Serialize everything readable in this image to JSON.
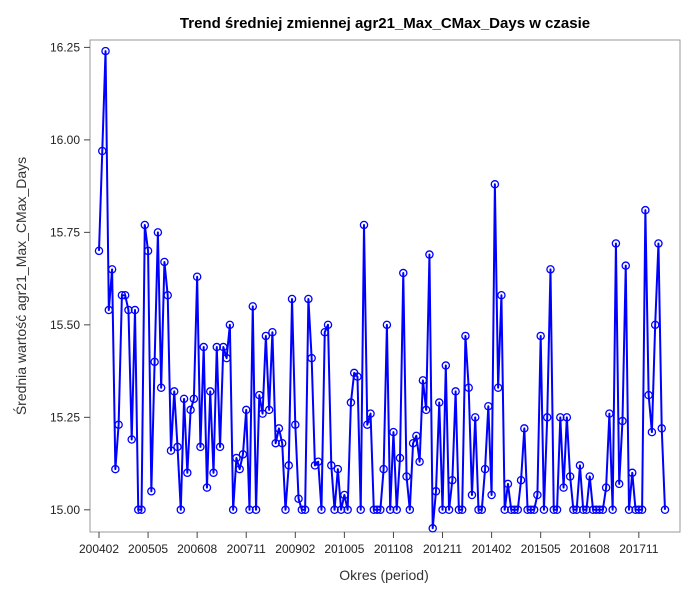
{
  "chart_data": {
    "type": "line",
    "title": "Trend średniej zmiennej agr21_Max_CMax_Days w czasie",
    "xlabel": "Okres (period)",
    "ylabel": "Średnia wartość agr21_Max_CMax_Days",
    "ylim": [
      14.94,
      16.27
    ],
    "y_ticks": [
      "15.00",
      "15.25",
      "15.50",
      "15.75",
      "16.00",
      "16.25"
    ],
    "x_ticks": [
      "200402",
      "200505",
      "200608",
      "200711",
      "200902",
      "201005",
      "201108",
      "201211",
      "201402",
      "201505",
      "201608",
      "201711"
    ],
    "grid": false,
    "legend": "none",
    "series_color": "#0000ff",
    "series": [
      {
        "values": [
          15.7,
          15.97,
          16.24,
          15.54,
          15.65,
          15.11,
          15.23,
          15.58,
          15.58,
          15.54,
          15.19,
          15.54,
          15.0,
          15.0,
          15.77,
          15.7,
          15.05,
          15.4,
          15.75,
          15.33,
          15.67,
          15.58,
          15.16,
          15.32,
          15.17,
          15.0,
          15.3,
          15.1,
          15.27,
          15.3,
          15.63,
          15.17,
          15.44,
          15.06,
          15.32,
          15.1,
          15.44,
          15.17,
          15.44,
          15.41,
          15.5,
          15.0,
          15.14,
          15.11,
          15.15,
          15.27,
          15.0,
          15.55,
          15.0,
          15.31,
          15.26,
          15.47,
          15.27,
          15.48,
          15.18,
          15.22,
          15.18,
          15.0,
          15.12,
          15.57,
          15.23,
          15.03,
          15.0,
          15.0,
          15.57,
          15.41,
          15.12,
          15.13,
          15.0,
          15.48,
          15.5,
          15.12,
          15.0,
          15.11,
          15.0,
          15.04,
          15.0,
          15.29,
          15.37,
          15.36,
          15.0,
          15.77,
          15.23,
          15.26,
          15.0,
          15.0,
          15.0,
          15.11,
          15.5,
          15.0,
          15.21,
          15.0,
          15.14,
          15.64,
          15.09,
          15.0,
          15.18,
          15.2,
          15.13,
          15.35,
          15.27,
          15.69,
          14.95,
          15.05,
          15.29,
          15.0,
          15.39,
          15.0,
          15.08,
          15.32,
          15.0,
          15.0,
          15.47,
          15.33,
          15.04,
          15.25,
          15.0,
          15.0,
          15.11,
          15.28,
          15.04,
          15.88,
          15.33,
          15.58,
          15.0,
          15.07,
          15.0,
          15.0,
          15.0,
          15.08,
          15.22,
          15.0,
          15.0,
          15.0,
          15.04,
          15.47,
          15.0,
          15.25,
          15.65,
          15.0,
          15.0,
          15.25,
          15.06,
          15.25,
          15.09,
          15.0,
          15.0,
          15.12,
          15.0,
          15.0,
          15.09,
          15.0,
          15.0,
          15.0,
          15.0,
          15.06,
          15.26,
          15.0,
          15.72,
          15.07,
          15.24,
          15.66,
          15.0,
          15.1,
          15.0,
          15.0,
          15.0,
          15.81,
          15.31,
          15.21,
          15.5,
          15.72,
          15.22,
          15.0
        ]
      }
    ]
  }
}
